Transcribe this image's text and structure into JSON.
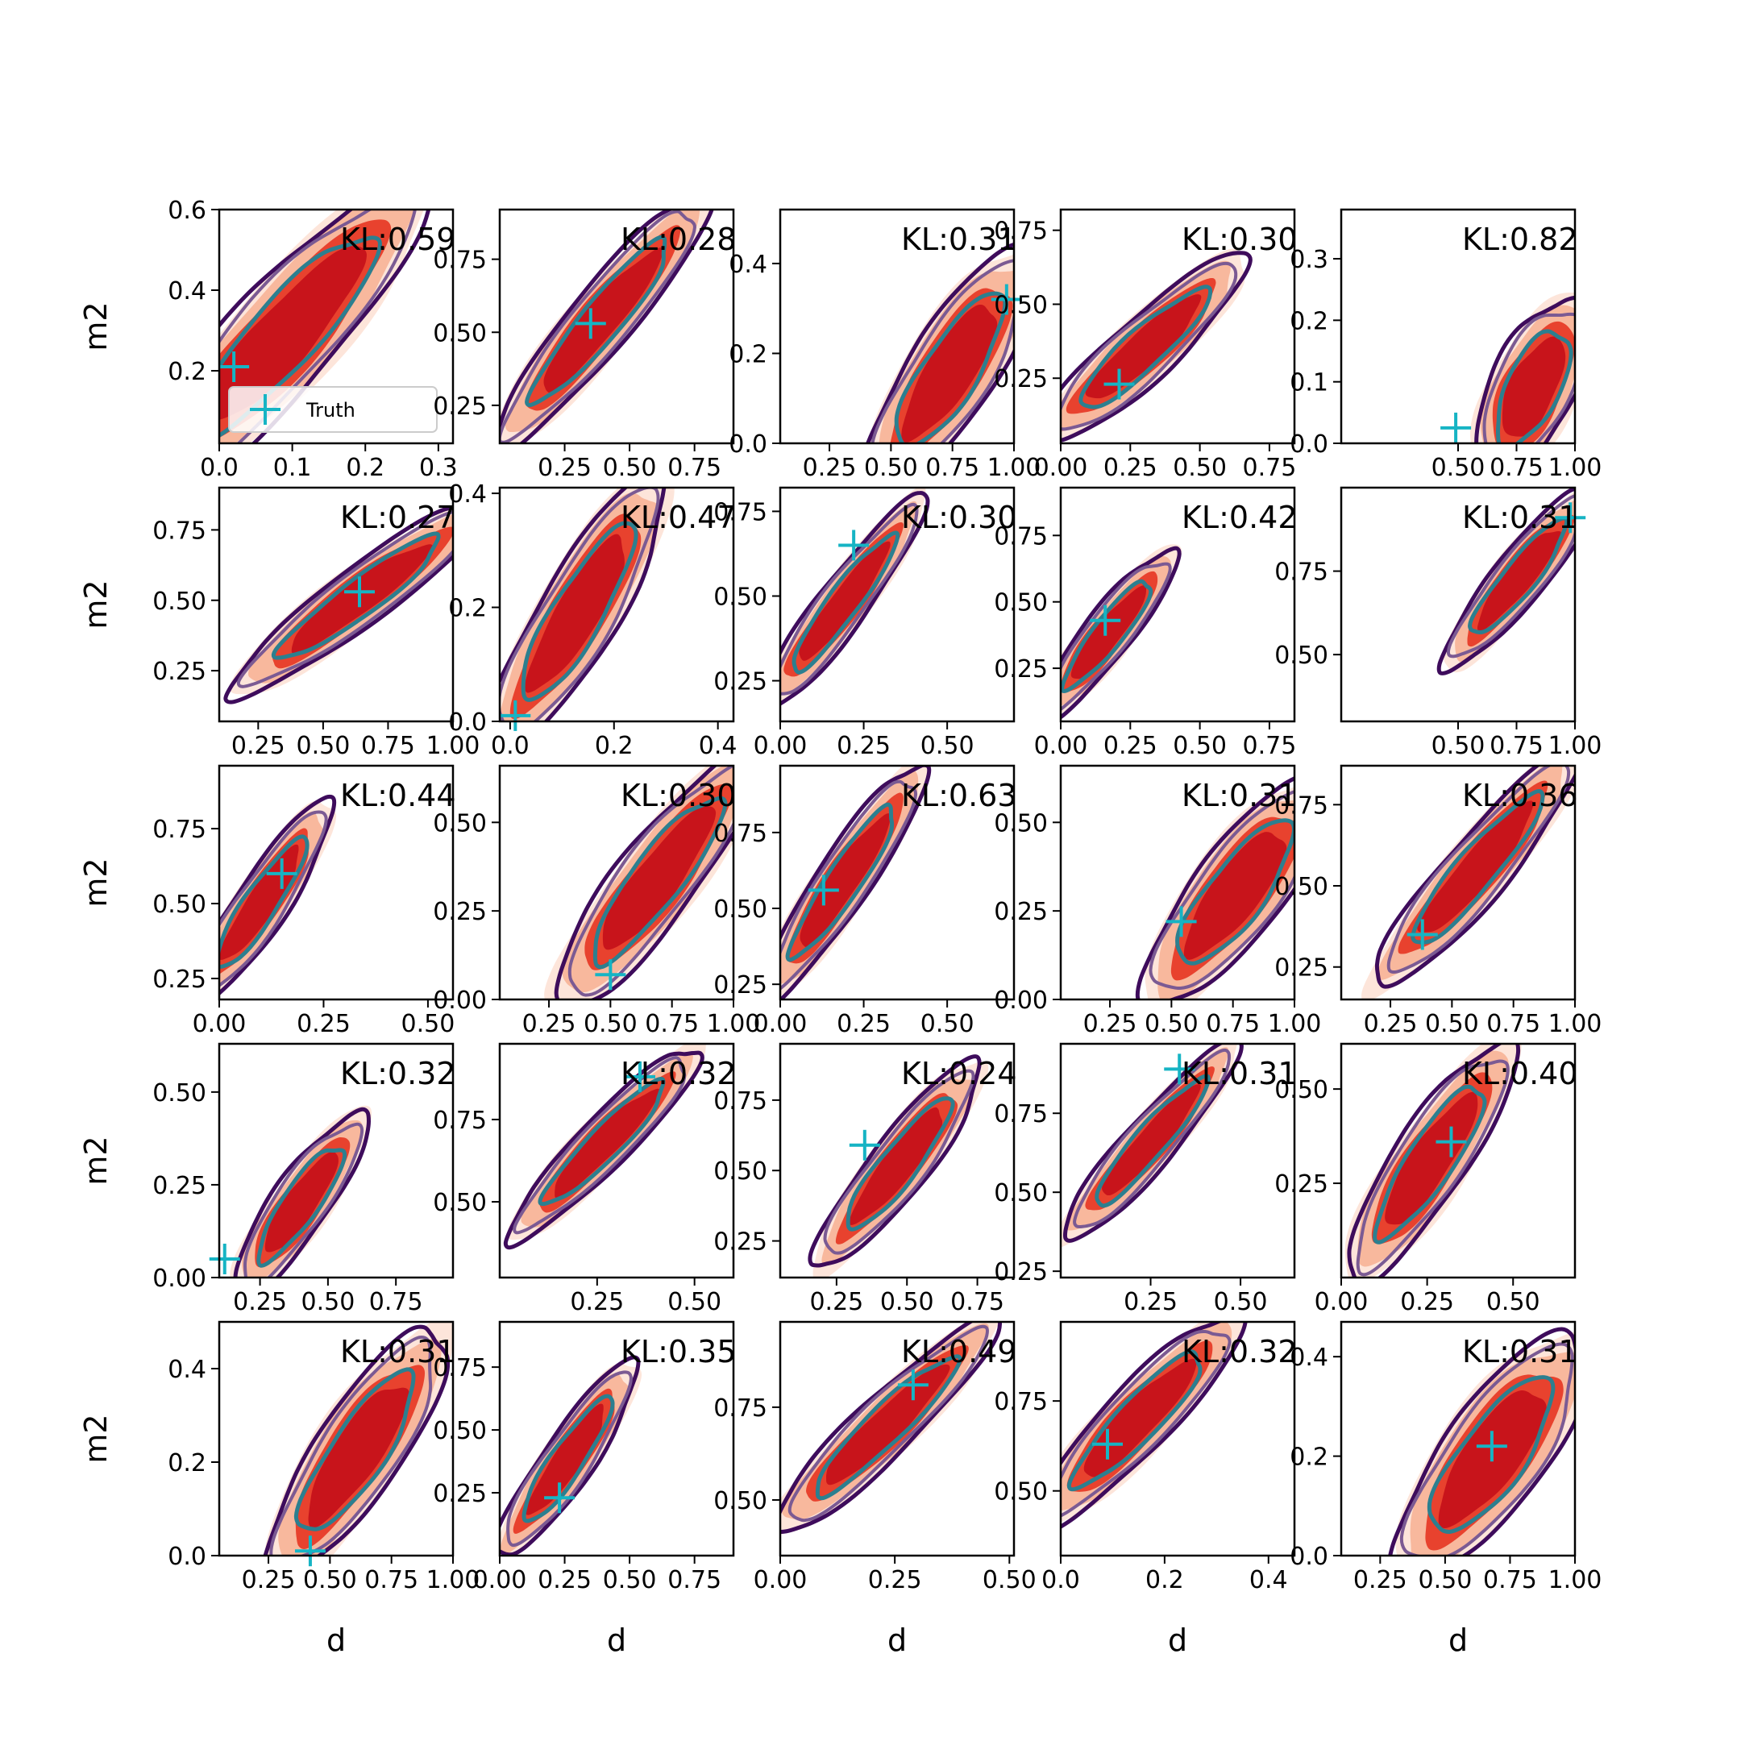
{
  "chart_data": {
    "type": "contour-grid",
    "rows": 5,
    "cols": 5,
    "xlabel": "d",
    "ylabel": "m2",
    "legend": {
      "label": "Truth",
      "placement": "lower-left of first panel"
    },
    "colors": {
      "fill_dark": "#c8141b",
      "fill_mid": "#e8422e",
      "fill_light": "#f8b59a",
      "fill_faint": "#fde2d6",
      "line_outer": "#3e0c5c",
      "line_mid": "#7b5a93",
      "line_inner": "#2c7f8f",
      "truth": "#16b4c4",
      "frame": "#000000"
    },
    "panels": [
      {
        "title": "KL:0.59",
        "xlim": [
          0.0,
          0.32
        ],
        "ylim": [
          0.02,
          0.6
        ],
        "xticks": [
          0.0,
          0.1,
          0.2,
          0.3
        ],
        "xtick_labels": [
          "0.0",
          "0.1",
          "0.2",
          "0.3"
        ],
        "yticks": [
          0.2,
          0.4,
          0.6
        ],
        "ytick_labels": [
          "0.2",
          "0.4",
          "0.6"
        ],
        "center": [
          0.09,
          0.29
        ],
        "spread": [
          0.08,
          0.16
        ],
        "rho": 0.88,
        "truth": [
          0.02,
          0.21
        ]
      },
      {
        "title": "KL:0.28",
        "xlim": [
          0.0,
          0.9
        ],
        "ylim": [
          0.12,
          0.92
        ],
        "xticks": [
          0.25,
          0.5,
          0.75
        ],
        "xtick_labels": [
          "0.25",
          "0.50",
          "0.75"
        ],
        "yticks": [
          0.25,
          0.5,
          0.75
        ],
        "ytick_labels": [
          "0.25",
          "0.50",
          "0.75"
        ],
        "center": [
          0.39,
          0.54
        ],
        "spread": [
          0.17,
          0.18
        ],
        "rho": 0.93,
        "truth": [
          0.35,
          0.53
        ]
      },
      {
        "title": "KL:0.31",
        "xlim": [
          0.05,
          1.0
        ],
        "ylim": [
          0.0,
          0.52
        ],
        "xticks": [
          0.25,
          0.5,
          0.75,
          1.0
        ],
        "xtick_labels": [
          "0.25",
          "0.50",
          "0.75",
          "1.00"
        ],
        "yticks": [
          0.0,
          0.2,
          0.4
        ],
        "ytick_labels": [
          "0.0",
          "0.2",
          "0.4"
        ],
        "center": [
          0.74,
          0.16
        ],
        "spread": [
          0.14,
          0.11
        ],
        "rho": 0.8,
        "truth": [
          0.97,
          0.32
        ]
      },
      {
        "title": "KL:0.30",
        "xlim": [
          0.0,
          0.84
        ],
        "ylim": [
          0.03,
          0.82
        ],
        "xticks": [
          0.0,
          0.25,
          0.5,
          0.75
        ],
        "xtick_labels": [
          "0.00",
          "0.25",
          "0.50",
          "0.75"
        ],
        "yticks": [
          0.25,
          0.5,
          0.75
        ],
        "ytick_labels": [
          "0.25",
          "0.50",
          "0.75"
        ],
        "center": [
          0.3,
          0.35
        ],
        "spread": [
          0.15,
          0.13
        ],
        "rho": 0.9,
        "truth": [
          0.21,
          0.23
        ]
      },
      {
        "title": "KL:0.82",
        "xlim": [
          0.0,
          1.0
        ],
        "ylim": [
          0.0,
          0.38
        ],
        "xticks": [
          0.5,
          0.75,
          1.0
        ],
        "xtick_labels": [
          "0.50",
          "0.75",
          "1.00"
        ],
        "yticks": [
          0.0,
          0.1,
          0.2,
          0.3
        ],
        "ytick_labels": [
          "0.0",
          "0.1",
          "0.2",
          "0.3"
        ],
        "center": [
          0.82,
          0.09
        ],
        "spread": [
          0.1,
          0.06
        ],
        "rho": 0.6,
        "truth": [
          0.49,
          0.025
        ]
      },
      {
        "title": "KL:0.27",
        "xlim": [
          0.1,
          1.0
        ],
        "ylim": [
          0.07,
          0.9
        ],
        "xticks": [
          0.25,
          0.5,
          0.75,
          1.0
        ],
        "xtick_labels": [
          "0.25",
          "0.50",
          "0.75",
          "1.00"
        ],
        "yticks": [
          0.25,
          0.5,
          0.75
        ],
        "ytick_labels": [
          "0.25",
          "0.50",
          "0.75"
        ],
        "center": [
          0.64,
          0.51
        ],
        "spread": [
          0.2,
          0.14
        ],
        "rho": 0.93,
        "truth": [
          0.64,
          0.53
        ]
      },
      {
        "title": "KL:0.47",
        "xlim": [
          -0.02,
          0.43
        ],
        "ylim": [
          0.0,
          0.41
        ],
        "xticks": [
          0.0,
          0.2,
          0.4
        ],
        "xtick_labels": [
          "0.0",
          "0.2",
          "0.4"
        ],
        "yticks": [
          0.0,
          0.2,
          0.4
        ],
        "ytick_labels": [
          "0.0",
          "0.2",
          "0.4"
        ],
        "center": [
          0.13,
          0.19
        ],
        "spread": [
          0.07,
          0.1
        ],
        "rho": 0.86,
        "truth": [
          0.01,
          0.01
        ]
      },
      {
        "title": "KL:0.30",
        "xlim": [
          0.0,
          0.7
        ],
        "ylim": [
          0.13,
          0.82
        ],
        "xticks": [
          0.0,
          0.25,
          0.5
        ],
        "xtick_labels": [
          "0.00",
          "0.25",
          "0.50"
        ],
        "yticks": [
          0.25,
          0.5,
          0.75
        ],
        "ytick_labels": [
          "0.25",
          "0.50",
          "0.75"
        ],
        "center": [
          0.19,
          0.48
        ],
        "spread": [
          0.1,
          0.13
        ],
        "rho": 0.93,
        "truth": [
          0.22,
          0.65
        ]
      },
      {
        "title": "KL:0.42",
        "xlim": [
          0.0,
          0.84
        ],
        "ylim": [
          0.05,
          0.93
        ],
        "xticks": [
          0.0,
          0.25,
          0.5,
          0.75
        ],
        "xtick_labels": [
          "0.00",
          "0.25",
          "0.50",
          "0.75"
        ],
        "yticks": [
          0.25,
          0.5,
          0.75
        ],
        "ytick_labels": [
          "0.25",
          "0.50",
          "0.75"
        ],
        "center": [
          0.17,
          0.38
        ],
        "spread": [
          0.1,
          0.13
        ],
        "rho": 0.9,
        "truth": [
          0.16,
          0.43
        ]
      },
      {
        "title": "KL:0.31",
        "xlim": [
          0.0,
          1.0
        ],
        "ylim": [
          0.3,
          1.0
        ],
        "xticks": [
          0.5,
          0.75,
          1.0
        ],
        "xtick_labels": [
          "0.50",
          "0.75",
          "1.00"
        ],
        "yticks": [
          0.5,
          0.75
        ],
        "ytick_labels": [
          "0.50",
          "0.75"
        ],
        "center": [
          0.76,
          0.73
        ],
        "spread": [
          0.13,
          0.11
        ],
        "rho": 0.9,
        "truth": [
          0.98,
          0.91
        ]
      },
      {
        "title": "KL:0.44",
        "xlim": [
          0.0,
          0.56
        ],
        "ylim": [
          0.18,
          0.96
        ],
        "xticks": [
          0.0,
          0.25,
          0.5
        ],
        "xtick_labels": [
          "0.00",
          "0.25",
          "0.50"
        ],
        "yticks": [
          0.25,
          0.5,
          0.75
        ],
        "ytick_labels": [
          "0.25",
          "0.50",
          "0.75"
        ],
        "center": [
          0.1,
          0.5
        ],
        "spread": [
          0.07,
          0.14
        ],
        "rho": 0.9,
        "truth": [
          0.15,
          0.6
        ]
      },
      {
        "title": "KL:0.30",
        "xlim": [
          0.05,
          1.0
        ],
        "ylim": [
          0.0,
          0.66
        ],
        "xticks": [
          0.25,
          0.5,
          0.75,
          1.0
        ],
        "xtick_labels": [
          "0.25",
          "0.50",
          "0.75",
          "1.00"
        ],
        "yticks": [
          0.0,
          0.25,
          0.5
        ],
        "ytick_labels": [
          "0.00",
          "0.25",
          "0.50"
        ],
        "center": [
          0.69,
          0.34
        ],
        "spread": [
          0.17,
          0.15
        ],
        "rho": 0.88,
        "truth": [
          0.5,
          0.07
        ]
      },
      {
        "title": "KL:0.63",
        "xlim": [
          0.0,
          0.7
        ],
        "ylim": [
          0.2,
          0.97
        ],
        "xticks": [
          0.0,
          0.25,
          0.5
        ],
        "xtick_labels": [
          "0.00",
          "0.25",
          "0.50"
        ],
        "yticks": [
          0.25,
          0.5,
          0.75
        ],
        "ytick_labels": [
          "0.25",
          "0.50",
          "0.75"
        ],
        "center": [
          0.19,
          0.59
        ],
        "spread": [
          0.1,
          0.16
        ],
        "rho": 0.92,
        "truth": [
          0.13,
          0.56
        ]
      },
      {
        "title": "KL:0.31",
        "xlim": [
          0.05,
          1.0
        ],
        "ylim": [
          0.0,
          0.66
        ],
        "xticks": [
          0.25,
          0.5,
          0.75,
          1.0
        ],
        "xtick_labels": [
          "0.25",
          "0.50",
          "0.75",
          "1.00"
        ],
        "yticks": [
          0.0,
          0.25,
          0.5
        ],
        "ytick_labels": [
          "0.00",
          "0.25",
          "0.50"
        ],
        "center": [
          0.76,
          0.3
        ],
        "spread": [
          0.15,
          0.13
        ],
        "rho": 0.8,
        "truth": [
          0.54,
          0.22
        ]
      },
      {
        "title": "KL:0.36",
        "xlim": [
          0.05,
          1.0
        ],
        "ylim": [
          0.15,
          0.87
        ],
        "xticks": [
          0.25,
          0.5,
          0.75,
          1.0
        ],
        "xtick_labels": [
          "0.25",
          "0.50",
          "0.75",
          "1.00"
        ],
        "yticks": [
          0.25,
          0.5,
          0.75
        ],
        "ytick_labels": [
          "0.25",
          "0.50",
          "0.75"
        ],
        "center": [
          0.6,
          0.55
        ],
        "spread": [
          0.17,
          0.15
        ],
        "rho": 0.92,
        "truth": [
          0.38,
          0.35
        ]
      },
      {
        "title": "KL:0.32",
        "xlim": [
          0.1,
          0.96
        ],
        "ylim": [
          0.0,
          0.63
        ],
        "xticks": [
          0.25,
          0.5,
          0.75
        ],
        "xtick_labels": [
          "0.25",
          "0.50",
          "0.75"
        ],
        "yticks": [
          0.0,
          0.25,
          0.5
        ],
        "ytick_labels": [
          "0.00",
          "0.25",
          "0.50"
        ],
        "center": [
          0.4,
          0.2
        ],
        "spread": [
          0.1,
          0.1
        ],
        "rho": 0.86,
        "truth": [
          0.12,
          0.05
        ]
      },
      {
        "title": "KL:0.32",
        "xlim": [
          0.0,
          0.6
        ],
        "ylim": [
          0.27,
          0.98
        ],
        "xticks": [
          0.25,
          0.5
        ],
        "xtick_labels": [
          "0.25",
          "0.50"
        ],
        "yticks": [
          0.5,
          0.75
        ],
        "ytick_labels": [
          "0.50",
          "0.75"
        ],
        "center": [
          0.27,
          0.68
        ],
        "spread": [
          0.1,
          0.12
        ],
        "rho": 0.93,
        "truth": [
          0.36,
          0.88
        ]
      },
      {
        "title": "KL:0.24",
        "xlim": [
          0.05,
          0.88
        ],
        "ylim": [
          0.12,
          0.95
        ],
        "xticks": [
          0.25,
          0.5,
          0.75
        ],
        "xtick_labels": [
          "0.25",
          "0.50",
          "0.75"
        ],
        "yticks": [
          0.25,
          0.5,
          0.75
        ],
        "ytick_labels": [
          "0.25",
          "0.50",
          "0.75"
        ],
        "center": [
          0.47,
          0.52
        ],
        "spread": [
          0.12,
          0.15
        ],
        "rho": 0.9,
        "truth": [
          0.35,
          0.59
        ]
      },
      {
        "title": "KL:0.31",
        "xlim": [
          0.0,
          0.65
        ],
        "ylim": [
          0.23,
          0.97
        ],
        "xticks": [
          0.25,
          0.5
        ],
        "xtick_labels": [
          "0.25",
          "0.50"
        ],
        "yticks": [
          0.25,
          0.5,
          0.75
        ],
        "ytick_labels": [
          "0.25",
          "0.50",
          "0.75"
        ],
        "center": [
          0.25,
          0.66
        ],
        "spread": [
          0.1,
          0.13
        ],
        "rho": 0.93,
        "truth": [
          0.33,
          0.89
        ]
      },
      {
        "title": "KL:0.40",
        "xlim": [
          0.0,
          0.68
        ],
        "ylim": [
          0.0,
          0.62
        ],
        "xticks": [
          0.0,
          0.25,
          0.5
        ],
        "xtick_labels": [
          "0.00",
          "0.25",
          "0.50"
        ],
        "yticks": [
          0.25,
          0.5
        ],
        "ytick_labels": [
          "0.25",
          "0.50"
        ],
        "center": [
          0.26,
          0.31
        ],
        "spread": [
          0.1,
          0.13
        ],
        "rho": 0.86,
        "truth": [
          0.32,
          0.36
        ]
      },
      {
        "title": "KL:0.31",
        "xlim": [
          0.05,
          1.0
        ],
        "ylim": [
          0.0,
          0.5
        ],
        "xticks": [
          0.25,
          0.5,
          0.75,
          1.0
        ],
        "xtick_labels": [
          "0.25",
          "0.50",
          "0.75",
          "1.00"
        ],
        "yticks": [
          0.0,
          0.2,
          0.4
        ],
        "ytick_labels": [
          "0.0",
          "0.2",
          "0.4"
        ],
        "center": [
          0.61,
          0.22
        ],
        "spread": [
          0.15,
          0.11
        ],
        "rho": 0.83,
        "truth": [
          0.42,
          0.01
        ]
      },
      {
        "title": "KL:0.35",
        "xlim": [
          0.0,
          0.9
        ],
        "ylim": [
          0.0,
          0.93
        ],
        "xticks": [
          0.0,
          0.25,
          0.5,
          0.75
        ],
        "xtick_labels": [
          "0.00",
          "0.25",
          "0.50",
          "0.75"
        ],
        "yticks": [
          0.25,
          0.5,
          0.75
        ],
        "ytick_labels": [
          "0.25",
          "0.50",
          "0.75"
        ],
        "center": [
          0.26,
          0.38
        ],
        "spread": [
          0.11,
          0.16
        ],
        "rho": 0.9,
        "truth": [
          0.23,
          0.23
        ]
      },
      {
        "title": "KL:0.49",
        "xlim": [
          0.0,
          0.51
        ],
        "ylim": [
          0.35,
          0.98
        ],
        "xticks": [
          0.0,
          0.25,
          0.5
        ],
        "xtick_labels": [
          "0.00",
          "0.25",
          "0.50"
        ],
        "yticks": [
          0.5,
          0.75
        ],
        "ytick_labels": [
          "0.50",
          "0.75"
        ],
        "center": [
          0.23,
          0.7
        ],
        "spread": [
          0.1,
          0.12
        ],
        "rho": 0.93,
        "truth": [
          0.29,
          0.81
        ]
      },
      {
        "title": "KL:0.32",
        "xlim": [
          0.0,
          0.45
        ],
        "ylim": [
          0.32,
          0.97
        ],
        "xticks": [
          0.0,
          0.2,
          0.4
        ],
        "xtick_labels": [
          "0.0",
          "0.2",
          "0.4"
        ],
        "yticks": [
          0.5,
          0.75
        ],
        "ytick_labels": [
          "0.50",
          "0.75"
        ],
        "center": [
          0.15,
          0.7
        ],
        "spread": [
          0.08,
          0.12
        ],
        "rho": 0.9,
        "truth": [
          0.09,
          0.63
        ]
      },
      {
        "title": "KL:0.31",
        "xlim": [
          0.1,
          1.0
        ],
        "ylim": [
          0.0,
          0.47
        ],
        "xticks": [
          0.25,
          0.5,
          0.75,
          1.0
        ],
        "xtick_labels": [
          "0.25",
          "0.50",
          "0.75",
          "1.00"
        ],
        "yticks": [
          0.0,
          0.2,
          0.4
        ],
        "ytick_labels": [
          "0.0",
          "0.2",
          "0.4"
        ],
        "center": [
          0.68,
          0.2
        ],
        "spread": [
          0.15,
          0.1
        ],
        "rho": 0.77,
        "truth": [
          0.68,
          0.22
        ]
      }
    ]
  }
}
